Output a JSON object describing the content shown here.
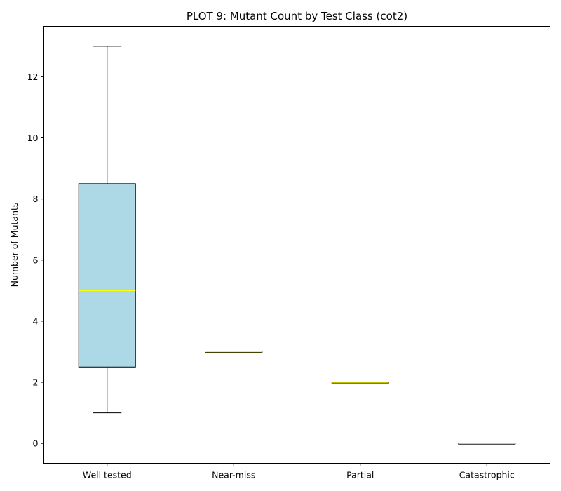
{
  "chart_data": {
    "type": "box",
    "title": "PLOT 9: Mutant Count by Test Class (cot2)",
    "xlabel": "",
    "ylabel": "Number of Mutants",
    "ylim": [
      -0.65,
      13.65
    ],
    "yticks": [
      0,
      2,
      4,
      6,
      8,
      10,
      12
    ],
    "categories": [
      "Well tested",
      "Near-miss",
      "Partial",
      "Catastrophic"
    ],
    "boxes": [
      {
        "category": "Well tested",
        "whisker_low": 1,
        "q1": 2.5,
        "median": 5,
        "q3": 8.5,
        "whisker_high": 13
      },
      {
        "category": "Near-miss",
        "whisker_low": 3,
        "q1": 3,
        "median": 3,
        "q3": 3,
        "whisker_high": 3
      },
      {
        "category": "Partial",
        "whisker_low": 2,
        "q1": 2,
        "median": 2,
        "q3": 2,
        "whisker_high": 2
      },
      {
        "category": "Catastrophic",
        "whisker_low": 0,
        "q1": 0,
        "median": 0,
        "q3": 0,
        "whisker_high": 0
      }
    ],
    "grid": false,
    "box_color": "#add8e6",
    "median_color": "#ffff00",
    "edge_color": "#000000"
  }
}
